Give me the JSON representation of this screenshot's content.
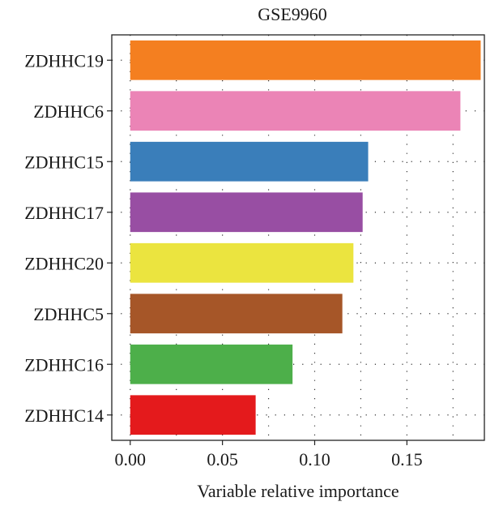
{
  "chart_data": {
    "type": "bar",
    "orientation": "horizontal",
    "title": "GSE9960",
    "xlabel": "Variable relative importance",
    "ylabel": "",
    "xlim": [
      -0.01,
      0.192
    ],
    "x_ticks": [
      0.0,
      0.05,
      0.1,
      0.15
    ],
    "x_tick_labels": [
      "0.00",
      "0.05",
      "0.10",
      "0.15"
    ],
    "grid": "dotted",
    "categories": [
      "ZDHHC19",
      "ZDHHC6",
      "ZDHHC15",
      "ZDHHC17",
      "ZDHHC20",
      "ZDHHC5",
      "ZDHHC16",
      "ZDHHC14"
    ],
    "values": [
      0.19,
      0.179,
      0.129,
      0.126,
      0.121,
      0.115,
      0.088,
      0.068
    ],
    "colors": [
      "#f47f20",
      "#eb84b6",
      "#3a7eba",
      "#984ea3",
      "#ebe43f",
      "#a65628",
      "#4daf4a",
      "#e41a1c"
    ]
  }
}
